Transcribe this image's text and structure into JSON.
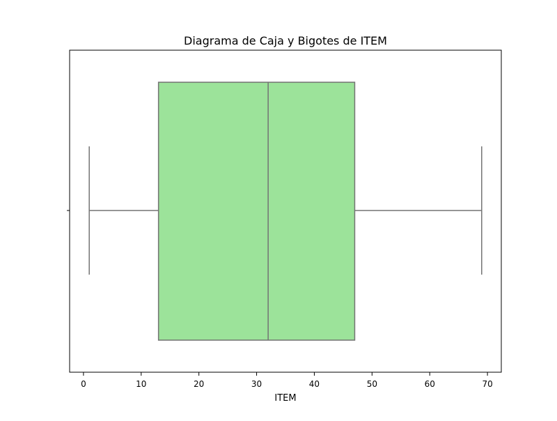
{
  "chart_data": {
    "type": "box",
    "title": "Diagrama de Caja y Bigotes de ITEM",
    "xlabel": "ITEM",
    "ylabel": "",
    "xlim": [
      -2.4,
      72.4
    ],
    "xticks": [
      0,
      10,
      20,
      30,
      40,
      50,
      60,
      70
    ],
    "orientation": "horizontal",
    "series": [
      {
        "whisker_low": 1,
        "q1": 13,
        "median": 32,
        "q3": 47,
        "whisker_high": 69
      }
    ],
    "grid": false,
    "legend": "none",
    "box_color": "#9ce39a",
    "line_color": "#737373",
    "frame_color": "#000000"
  }
}
